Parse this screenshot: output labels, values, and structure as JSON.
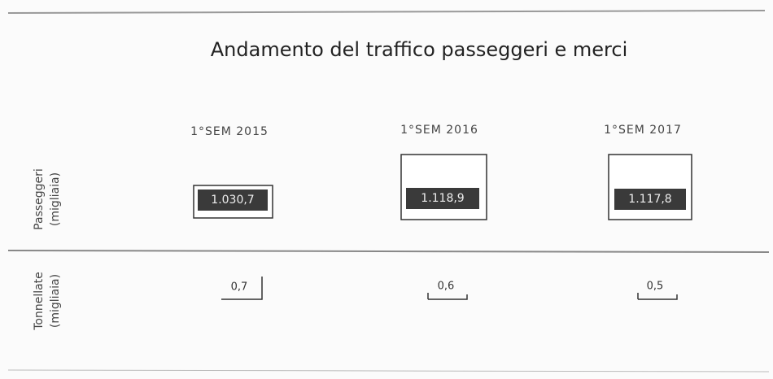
{
  "header": {
    "title": "Andamento del traffico passeggeri e merci"
  },
  "table": {
    "columns": [
      "1°SEM 2015",
      "1°SEM 2016",
      "1°SEM 2017"
    ],
    "rows": [
      {
        "label": "Passeggeri",
        "unit": "(migliaia)",
        "values": [
          "1.030,7",
          "1.118,9",
          "1.117,8"
        ]
      },
      {
        "label": "Tonnellate",
        "unit": "(migliaia)",
        "values": [
          "0,7",
          "0,6",
          "0,5"
        ]
      }
    ]
  }
}
